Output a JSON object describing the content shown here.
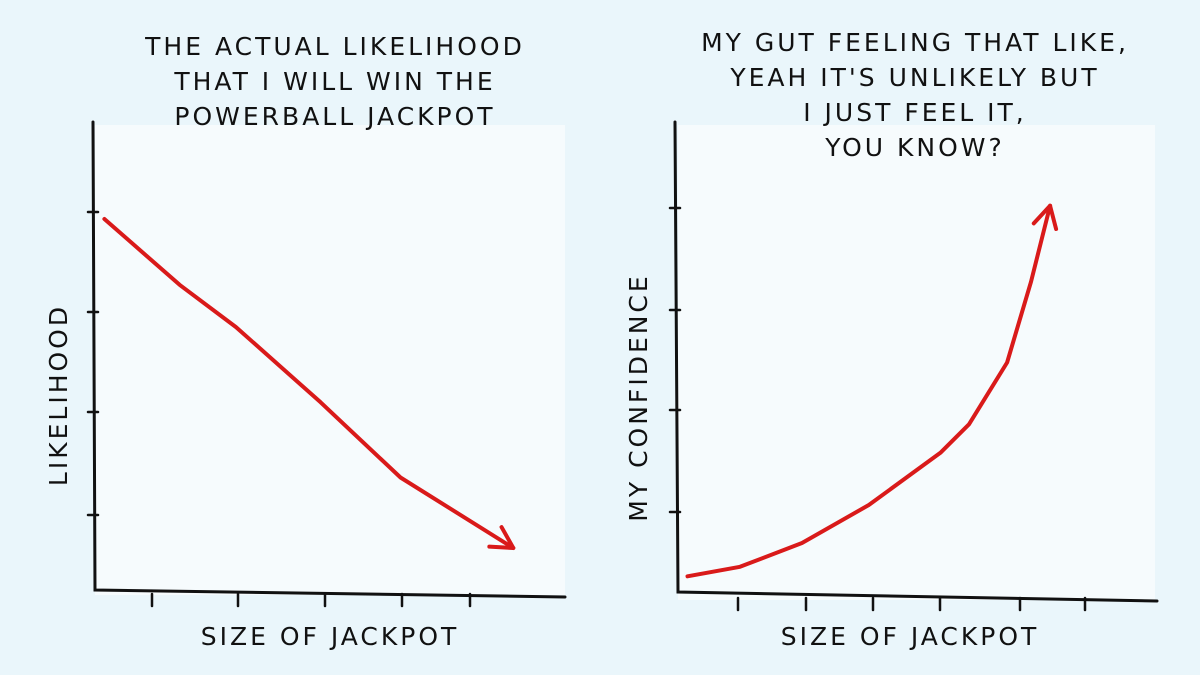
{
  "chart_data": [
    {
      "type": "line",
      "title": [
        "THE ACTUAL LIKELIHOOD",
        "THAT I WILL WIN THE",
        "POWERBALL JACKPOT"
      ],
      "xlabel": "SIZE OF JACKPOT",
      "ylabel": "LIKELIHOOD",
      "x": [
        0.2,
        1.8,
        3.0,
        4.8,
        6.5,
        8.9
      ],
      "values": [
        8.0,
        6.6,
        5.7,
        4.1,
        2.5,
        1.0
      ],
      "xlim": [
        0,
        10
      ],
      "ylim": [
        0,
        10
      ],
      "color": "#d91a1a"
    },
    {
      "type": "line",
      "title": [
        "MY GUT FEELING THAT LIKE,",
        "YEAH IT'S UNLIKELY BUT",
        "I JUST FEEL IT,",
        "YOU KNOW?"
      ],
      "xlabel": "SIZE OF JACKPOT",
      "ylabel": "MY CONFIDENCE",
      "x": [
        0.2,
        1.3,
        2.6,
        4.0,
        5.5,
        6.1,
        6.9,
        7.4,
        7.8
      ],
      "values": [
        0.5,
        0.7,
        1.2,
        2.0,
        3.1,
        3.7,
        5.0,
        6.7,
        8.3
      ],
      "xlim": [
        0,
        10
      ],
      "ylim": [
        0,
        10
      ],
      "color": "#d91a1a"
    }
  ]
}
